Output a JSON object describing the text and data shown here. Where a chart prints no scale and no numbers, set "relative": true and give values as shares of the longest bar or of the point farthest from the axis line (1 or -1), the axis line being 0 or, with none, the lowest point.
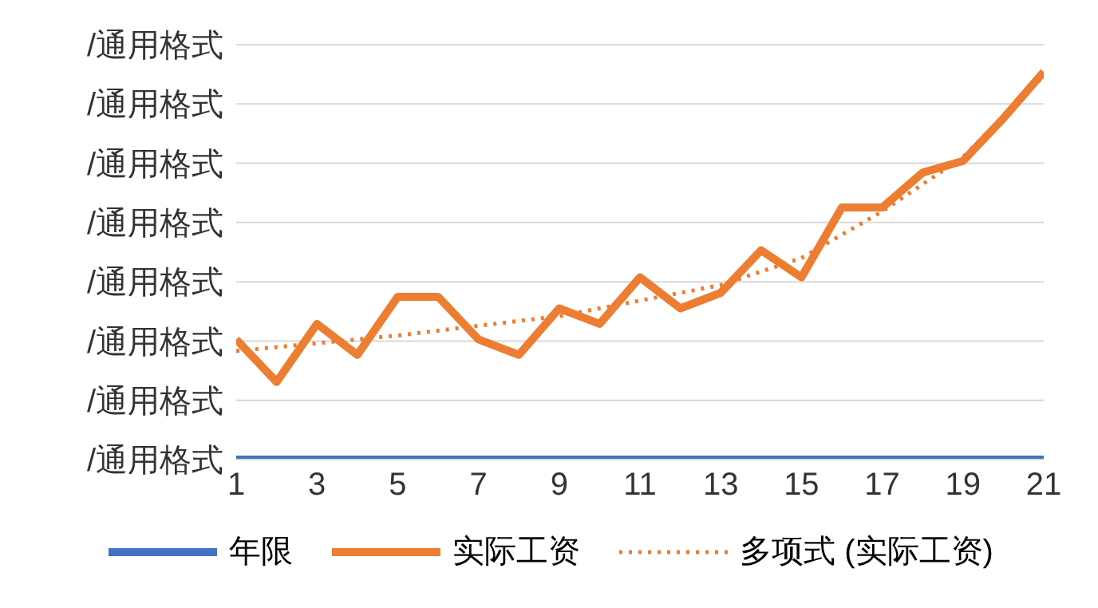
{
  "chart_data": {
    "type": "line",
    "relative": true,
    "x": [
      1,
      2,
      3,
      4,
      5,
      6,
      7,
      8,
      9,
      10,
      11,
      12,
      13,
      14,
      15,
      16,
      17,
      18,
      19,
      20,
      21
    ],
    "xlim": [
      1,
      21
    ],
    "xticks": [
      1,
      3,
      5,
      7,
      9,
      11,
      13,
      15,
      17,
      19,
      21
    ],
    "annotations": [
      "/通用格式",
      "/通用格式",
      "/通用格式",
      "/通用格式",
      "/通用格式",
      "/通用格式",
      "/通用格式",
      "/通用格式"
    ],
    "grid": "y",
    "legend": "bottom",
    "marker": "none",
    "series": [
      {
        "name": "年限",
        "color": "#4472c4",
        "values": [
          0,
          0,
          0,
          0,
          0,
          0,
          0,
          0,
          0,
          0,
          0,
          0,
          0,
          0,
          0,
          0,
          0,
          0,
          0,
          0,
          0
        ]
      },
      {
        "name": "实际工资",
        "color": "#ed7d31",
        "values": [
          0.31,
          0.2,
          0.35,
          0.27,
          0.42,
          0.42,
          0.31,
          0.27,
          0.39,
          0.35,
          0.47,
          0.39,
          0.43,
          0.54,
          0.47,
          0.65,
          0.65,
          0.74,
          0.77,
          0.88,
          1
        ]
      },
      {
        "name": "多项式 (实际工资)",
        "type": "line",
        "line_style": "dotted",
        "color": "#ed7d31",
        "x": [
          1,
          5,
          9,
          13,
          15,
          17,
          19,
          21
        ],
        "values": [
          0.28,
          0.32,
          0.37,
          0.45,
          0.52,
          0.64,
          0.78,
          0.99
        ]
      }
    ]
  }
}
